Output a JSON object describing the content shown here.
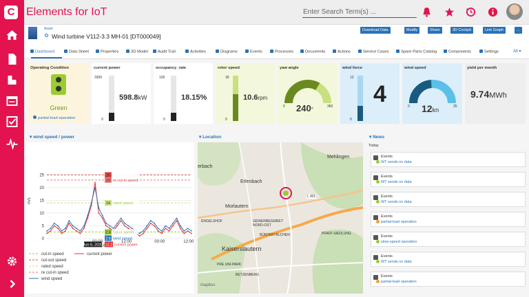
{
  "app": {
    "logo": "C",
    "title": "Elements for IoT"
  },
  "search": {
    "placeholder": "Enter Search Term(s) ..."
  },
  "asset": {
    "type": "Asset",
    "name": "Wind turbine V112-3.3 MH-01 [DT000049]"
  },
  "actions": [
    "Download Data",
    "Modify",
    "Share",
    "3D Cockpit",
    "Link Graph",
    "..."
  ],
  "tabs": [
    "Dashboard",
    "Data Sheet",
    "Properties",
    "3D Model",
    "Audit Trail",
    "Activities",
    "Diagrams",
    "Events",
    "Processes",
    "Documents",
    "Actions",
    "Service Cases",
    "Spare Parts Catalog",
    "Components",
    "Settings"
  ],
  "tabs_all": "All",
  "kpis": {
    "operating": {
      "title": "Operating Condition",
      "state": "Green",
      "link": "partial-load operation"
    },
    "current_power": {
      "title": "current power",
      "max": "3300",
      "min": "0",
      "value": "598.8",
      "unit": "kW",
      "level": 0.18
    },
    "occupancy": {
      "title": "occupancy_rate",
      "max": "100",
      "min": "0",
      "value": "18.15",
      "unit": "%",
      "level": 0.18
    },
    "rotor": {
      "title": "rotor speed",
      "max": "18",
      "min": "0",
      "value": "10.6",
      "unit": "rpm",
      "level": 0.59
    },
    "yaw": {
      "title": "yaw angle",
      "min": "0",
      "max": "360",
      "value": "240",
      "unit": "°",
      "level": 0.67
    },
    "wind_force": {
      "title": "wind force",
      "max": "12",
      "min": "0",
      "value": "4",
      "level": 0.33
    },
    "wind_speed": {
      "title": "wind speed",
      "min": "0",
      "max": "25",
      "value": "12",
      "unit": "kn",
      "level": 0.48
    },
    "yield": {
      "title": "yield per month",
      "value": "9.74",
      "unit": "MWh"
    }
  },
  "sections": {
    "chart": "wind speed / power",
    "location": "Location",
    "news": "News",
    "today": "Today"
  },
  "chart_data": {
    "type": "line",
    "ylabel": "m/s",
    "yticks": [
      0,
      5,
      10,
      15,
      20,
      25
    ],
    "ylim": [
      0,
      27
    ],
    "xticks": [
      "00:00",
      "12:00",
      "00:00",
      "12:00"
    ],
    "xticks_bottom": [
      "Jun 6, 00:00"
    ],
    "x": [
      0,
      1,
      2,
      3,
      4,
      5,
      6,
      7,
      8,
      9,
      10,
      11,
      12,
      13,
      14,
      15,
      16,
      17,
      18,
      19,
      20,
      21,
      22,
      23,
      24,
      25,
      26,
      27,
      28,
      29,
      30,
      31,
      32,
      33,
      34,
      35,
      36,
      37,
      38,
      39
    ],
    "series": [
      {
        "name": "wind speed",
        "values": [
          3,
          4,
          6,
          5,
          3,
          4,
          7,
          5,
          4,
          3,
          5,
          9,
          14,
          20,
          12,
          9,
          6,
          5,
          4,
          6,
          8,
          6,
          5,
          4,
          3,
          2,
          3,
          5,
          7,
          6,
          4,
          3,
          5,
          4,
          6,
          8,
          5,
          3,
          4,
          3
        ]
      },
      {
        "name": "current power",
        "values": [
          2,
          3,
          5,
          4,
          2,
          3,
          6,
          4,
          3,
          2,
          4,
          8,
          13,
          22,
          10,
          8,
          5,
          4,
          3,
          5,
          7,
          5,
          4,
          3,
          2,
          1,
          2,
          4,
          6,
          5,
          3,
          2,
          4,
          3,
          5,
          7,
          4,
          2,
          3,
          2
        ]
      }
    ],
    "thresholds": [
      {
        "name": "cut-out speed",
        "value": 25
      },
      {
        "name": "re cut-in speed",
        "value": 23
      },
      {
        "name": "rated speed",
        "value": 14
      },
      {
        "name": "cut-in speed",
        "value": 2.6
      }
    ],
    "tooltip": {
      "date": "Jun 6, 2020",
      "cutout": "25",
      "recutin": "23",
      "rated": "14",
      "cutin": "2.6",
      "windspeed_label": "wind speed",
      "windspeed": "2.6",
      "power": "12.2",
      "power_label": "current power"
    },
    "legend": [
      "cut-in speed",
      "current power",
      "cut-out speed",
      "rated speed",
      "re cut-in speed",
      "wind speed"
    ],
    "legend_placement": "bottom",
    "colors": {
      "wind": "#2a72b8",
      "power": "#e03030",
      "cutout": "#e04a4a",
      "recutin": "#f07a7a",
      "rated": "#c8e080",
      "cutin": "#9acd32"
    }
  },
  "map": {
    "labels": [
      "erbach",
      "Erlenbach",
      "Mehlingen",
      "Morlautern",
      "Kaiserslautern",
      "ENGELSHOF",
      "GEWERBEGEBIET NORD-OST",
      "BÜNTERTÄLCHEN",
      "PFAFF-SIEDLUNG",
      "BETZENBERG",
      "PRE UNI-PARK",
      "L 401"
    ],
    "attribution": "mapbox"
  },
  "news": [
    {
      "event": "Events",
      "text": "WT sends no data",
      "dot": "green"
    },
    {
      "event": "Events",
      "text": "WT sends no data",
      "dot": "green"
    },
    {
      "event": "Events",
      "text": "WT sends no data",
      "dot": "green"
    },
    {
      "event": "Events",
      "text": "partial-load operation",
      "dot": "orange"
    },
    {
      "event": "Events",
      "text": "slow-speed operation",
      "dot": "green"
    },
    {
      "event": "Events",
      "text": "WT sends no data",
      "dot": "green"
    },
    {
      "event": "Events",
      "text": "partial-load operation",
      "dot": "orange"
    }
  ]
}
